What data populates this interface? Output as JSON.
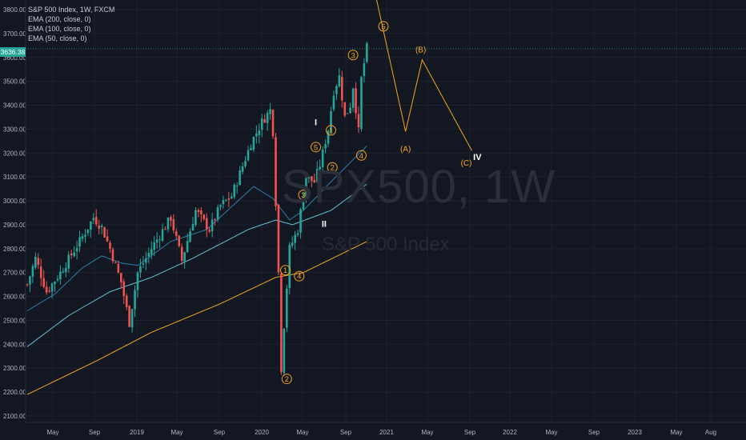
{
  "header": {
    "title": "S&P 500 Index, 1W, FXCM",
    "indicators": [
      "EMA (200, close, 0)",
      "EMA (100, close, 0)",
      "EMA (50, close, 0)"
    ]
  },
  "last_price": "3636.38",
  "watermark": {
    "symbol": "SPX500, 1W",
    "name": "S&P 500 Index"
  },
  "colors": {
    "background": "#131722",
    "up": "#26a69a",
    "down": "#ef5350",
    "ema50": "#2a7fa8",
    "ema100": "#5ec4d6",
    "ema200": "#f5a623",
    "wave": "#f5a623",
    "wave_label": "#f5a623",
    "major_label": "#ffffff"
  },
  "chart_data": {
    "type": "candlestick",
    "title": "S&P 500 Index, 1W, FXCM",
    "ylim": [
      2150,
      3850
    ],
    "x_axis": [
      "May",
      "Sep",
      "2019",
      "May",
      "Sep",
      "2020",
      "May",
      "Sep",
      "2021",
      "May",
      "Sep",
      "2022",
      "May",
      "Sep",
      "2023",
      "May",
      "Aug"
    ],
    "y_ticks": [
      "2100.00",
      "2200.00",
      "2300.00",
      "2400.00",
      "2500.00",
      "2600.00",
      "2700.00",
      "2800.00",
      "2900.00",
      "3000.00",
      "3100.00",
      "3200.00",
      "3300.00",
      "3400.00",
      "3500.00",
      "3600.00",
      "3700.00",
      "3800.00"
    ],
    "y_tick_values": [
      2100,
      2200,
      2300,
      2400,
      2500,
      2600,
      2700,
      2800,
      2900,
      3000,
      3100,
      3200,
      3300,
      3400,
      3500,
      3600,
      3700,
      3800
    ],
    "price_anchors": [
      {
        "t": 0,
        "v": 2650
      },
      {
        "t": 3,
        "v": 2760
      },
      {
        "t": 7,
        "v": 2620
      },
      {
        "t": 12,
        "v": 2700
      },
      {
        "t": 20,
        "v": 2850
      },
      {
        "t": 24,
        "v": 2930
      },
      {
        "t": 27,
        "v": 2890
      },
      {
        "t": 30,
        "v": 2800
      },
      {
        "t": 34,
        "v": 2660
      },
      {
        "t": 37,
        "v": 2490
      },
      {
        "t": 40,
        "v": 2700
      },
      {
        "t": 46,
        "v": 2820
      },
      {
        "t": 52,
        "v": 2930
      },
      {
        "t": 56,
        "v": 2750
      },
      {
        "t": 61,
        "v": 2960
      },
      {
        "t": 66,
        "v": 2880
      },
      {
        "t": 70,
        "v": 2980
      },
      {
        "t": 74,
        "v": 3020
      },
      {
        "t": 81,
        "v": 3240
      },
      {
        "t": 85,
        "v": 3330
      },
      {
        "t": 88,
        "v": 3380
      },
      {
        "t": 89,
        "v": 3290
      },
      {
        "t": 91,
        "v": 2700
      },
      {
        "t": 92,
        "v": 2300
      },
      {
        "t": 93,
        "v": 2480
      },
      {
        "t": 95,
        "v": 2800
      },
      {
        "t": 98,
        "v": 2880
      },
      {
        "t": 101,
        "v": 3100
      },
      {
        "t": 104,
        "v": 3080
      },
      {
        "t": 106,
        "v": 3150
      },
      {
        "t": 109,
        "v": 3300
      },
      {
        "t": 111,
        "v": 3460
      },
      {
        "t": 113,
        "v": 3520
      },
      {
        "t": 115,
        "v": 3350
      },
      {
        "t": 117,
        "v": 3400
      },
      {
        "t": 118,
        "v": 3480
      },
      {
        "t": 120,
        "v": 3290
      },
      {
        "t": 121,
        "v": 3510
      },
      {
        "t": 123,
        "v": 3640
      }
    ],
    "ema50": [
      {
        "t": 0,
        "v": 2540
      },
      {
        "t": 10,
        "v": 2610
      },
      {
        "t": 20,
        "v": 2720
      },
      {
        "t": 27,
        "v": 2770
      },
      {
        "t": 34,
        "v": 2740
      },
      {
        "t": 40,
        "v": 2730
      },
      {
        "t": 52,
        "v": 2830
      },
      {
        "t": 65,
        "v": 2880
      },
      {
        "t": 82,
        "v": 3060
      },
      {
        "t": 89,
        "v": 3010
      },
      {
        "t": 95,
        "v": 2920
      },
      {
        "t": 100,
        "v": 2960
      },
      {
        "t": 110,
        "v": 3080
      },
      {
        "t": 123,
        "v": 3230
      }
    ],
    "ema100": [
      {
        "t": 0,
        "v": 2390
      },
      {
        "t": 15,
        "v": 2520
      },
      {
        "t": 30,
        "v": 2620
      },
      {
        "t": 45,
        "v": 2680
      },
      {
        "t": 60,
        "v": 2760
      },
      {
        "t": 80,
        "v": 2880
      },
      {
        "t": 90,
        "v": 2920
      },
      {
        "t": 96,
        "v": 2900
      },
      {
        "t": 110,
        "v": 2960
      },
      {
        "t": 123,
        "v": 3070
      }
    ],
    "ema200": [
      {
        "t": 0,
        "v": 2190
      },
      {
        "t": 25,
        "v": 2330
      },
      {
        "t": 45,
        "v": 2450
      },
      {
        "t": 70,
        "v": 2570
      },
      {
        "t": 90,
        "v": 2680
      },
      {
        "t": 100,
        "v": 2700
      },
      {
        "t": 123,
        "v": 2830
      }
    ],
    "projection": [
      {
        "t": 125,
        "v": 3920
      },
      {
        "t": 137,
        "v": 3290
      },
      {
        "t": 143,
        "v": 3590
      },
      {
        "t": 161,
        "v": 3210
      }
    ],
    "wave_labels": [
      {
        "text": "1",
        "t": 93.5,
        "v": 2710,
        "style": "circle"
      },
      {
        "text": "2",
        "t": 94,
        "v": 2255,
        "style": "circle"
      },
      {
        "text": "3",
        "t": 100,
        "v": 3025,
        "style": "circle"
      },
      {
        "text": "4",
        "t": 98.5,
        "v": 2685,
        "style": "circle"
      },
      {
        "text": "5",
        "t": 104.5,
        "v": 3225,
        "style": "circle"
      },
      {
        "text": "1",
        "t": 110,
        "v": 3295,
        "style": "circle"
      },
      {
        "text": "2",
        "t": 110.5,
        "v": 3140,
        "style": "circle"
      },
      {
        "text": "3",
        "t": 118,
        "v": 3610,
        "style": "circle"
      },
      {
        "text": "4",
        "t": 121,
        "v": 3190,
        "style": "circle"
      },
      {
        "text": "5",
        "t": 129,
        "v": 3730,
        "style": "circle"
      },
      {
        "text": "I",
        "t": 104.5,
        "v": 3330,
        "style": "major"
      },
      {
        "text": "II",
        "t": 107.5,
        "v": 2905,
        "style": "major"
      },
      {
        "text": "(A)",
        "t": 137,
        "v": 3220,
        "style": "paren"
      },
      {
        "text": "(B)",
        "t": 142.5,
        "v": 3635,
        "style": "paren"
      },
      {
        "text": "(C)",
        "t": 159,
        "v": 3160,
        "style": "paren"
      },
      {
        "text": "IV",
        "t": 163,
        "v": 3185,
        "style": "major"
      }
    ]
  }
}
